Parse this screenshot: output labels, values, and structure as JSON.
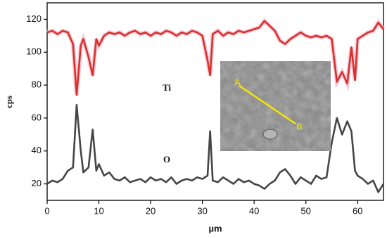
{
  "chart_data": {
    "type": "line",
    "x_label": "µm",
    "y_label": "cps",
    "annotations": [
      "Ti",
      "O"
    ],
    "inset_labels": [
      "A",
      "B"
    ],
    "x": [
      0,
      1,
      2,
      3,
      4,
      5,
      5.7,
      6.5,
      7,
      8,
      8.8,
      9.5,
      10,
      11,
      12,
      13,
      14,
      15,
      16,
      17,
      18,
      19,
      20,
      21,
      22,
      23,
      24,
      25,
      26,
      27,
      28,
      29,
      30,
      31,
      31.5,
      32,
      33,
      34,
      35,
      36,
      37,
      38,
      39,
      40,
      41,
      42,
      43,
      44,
      45,
      46,
      47,
      48,
      49,
      50,
      51,
      52,
      53,
      54,
      55,
      56,
      57,
      58,
      58.8,
      59.5,
      60,
      61,
      62,
      63,
      64,
      65
    ],
    "series": [
      {
        "name": "Ti",
        "color": "#d9302c",
        "values": [
          112,
          113,
          111,
          113,
          112,
          105,
          74,
          104,
          108,
          97,
          86,
          108,
          104,
          110,
          112,
          111,
          112,
          110,
          112,
          113,
          111,
          112,
          110,
          112,
          111,
          113,
          112,
          110,
          112,
          111,
          113,
          112,
          110,
          95,
          86,
          111,
          113,
          110,
          112,
          111,
          113,
          112,
          113,
          114,
          115,
          119,
          116,
          113,
          107,
          105,
          108,
          110,
          112,
          110,
          109,
          110,
          109,
          110,
          108,
          82,
          88,
          81,
          103,
          83,
          108,
          110,
          112,
          113,
          118,
          114
        ]
      },
      {
        "name": "O",
        "color": "#454545",
        "values": [
          20,
          22,
          21,
          23,
          28,
          30,
          68,
          40,
          27,
          30,
          53,
          28,
          32,
          25,
          27,
          23,
          22,
          24,
          21,
          22,
          23,
          21,
          24,
          22,
          23,
          21,
          24,
          20,
          22,
          23,
          22,
          24,
          23,
          25,
          52,
          22,
          21,
          24,
          22,
          20,
          23,
          21,
          22,
          20,
          19,
          17,
          20,
          22,
          27,
          29,
          25,
          20,
          24,
          22,
          20,
          25,
          23,
          24,
          45,
          60,
          50,
          58,
          52,
          28,
          25,
          23,
          20,
          22,
          15,
          20
        ]
      }
    ],
    "xlim": [
      0,
      65
    ],
    "ylim": [
      10,
      130
    ],
    "xticks": [
      0,
      10,
      20,
      30,
      40,
      50,
      60
    ],
    "yticks": [
      20,
      40,
      60,
      80,
      100,
      120
    ]
  }
}
